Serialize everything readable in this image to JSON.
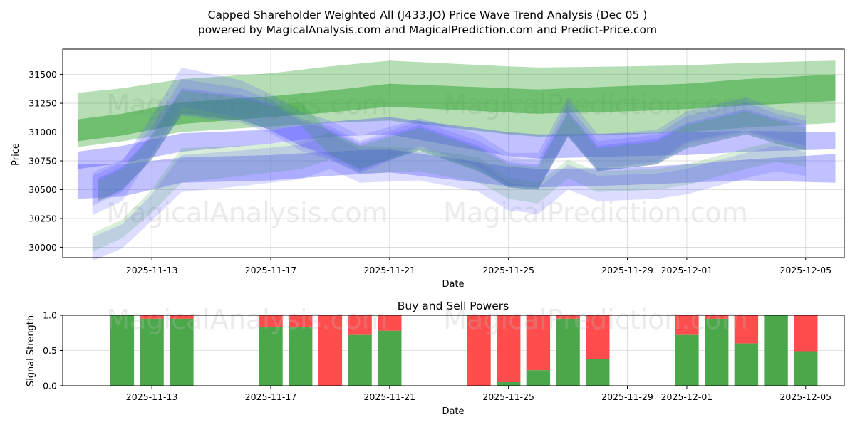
{
  "chart_data": [
    {
      "type": "area",
      "title_line1": "Capped Shareholder Weighted All (J433.JO) Price Wave Trend Analysis (Dec 05 )",
      "title_line2": "powered by MagicalAnalysis.com and MagicalPrediction.com and Predict-Price.com",
      "xlabel": "Date",
      "ylabel": "Price",
      "ylim": [
        29910,
        31720
      ],
      "xlim": [
        -2.0,
        24.3
      ],
      "x_ticks": [
        {
          "x": 1,
          "label": "2025-11-13"
        },
        {
          "x": 5,
          "label": "2025-11-17"
        },
        {
          "x": 9,
          "label": "2025-11-21"
        },
        {
          "x": 13,
          "label": "2025-11-25"
        },
        {
          "x": 17,
          "label": "2025-11-29"
        },
        {
          "x": 19,
          "label": "2025-12-01"
        },
        {
          "x": 23,
          "label": "2025-12-05"
        }
      ],
      "y_ticks": [
        30000,
        30250,
        30500,
        30750,
        31000,
        31250,
        31500
      ],
      "watermarks": [
        "MagicalAnalysis.com",
        "MagicalPrediction.com"
      ],
      "bands": [
        {
          "name": "green-outer",
          "color": "#2ca02c",
          "opacity": 0.35,
          "x": [
            -1.5,
            0.0,
            2.0,
            5.0,
            7.0,
            9.0,
            13.0,
            14.0,
            17.0,
            19.0,
            21.0,
            24.0
          ],
          "upper": [
            31340,
            31380,
            31460,
            31510,
            31570,
            31620,
            31570,
            31560,
            31570,
            31580,
            31600,
            31620
          ],
          "lower": [
            30870,
            30920,
            31000,
            31050,
            31080,
            31100,
            30980,
            30960,
            30980,
            31000,
            31040,
            31080
          ]
        },
        {
          "name": "green-inner",
          "color": "#2ca02c",
          "opacity": 0.5,
          "x": [
            -1.5,
            0.0,
            2.0,
            5.0,
            7.0,
            9.0,
            13.0,
            14.0,
            17.0,
            19.0,
            21.0,
            24.0
          ],
          "upper": [
            31110,
            31160,
            31260,
            31310,
            31360,
            31420,
            31380,
            31370,
            31400,
            31420,
            31460,
            31500
          ],
          "lower": [
            30920,
            30970,
            31070,
            31130,
            31170,
            31220,
            31170,
            31160,
            31180,
            31200,
            31230,
            31270
          ]
        },
        {
          "name": "blue-mid",
          "color": "#3333ff",
          "opacity": 0.3,
          "x": [
            -1.5,
            0.0,
            2.0,
            5.0,
            7.0,
            9.0,
            13.0,
            14.0,
            17.0,
            19.0,
            21.0,
            24.0
          ],
          "upper": [
            30830,
            30880,
            30990,
            31020,
            31090,
            31130,
            31000,
            30980,
            30990,
            31000,
            31010,
            31000
          ],
          "lower": [
            30680,
            30730,
            30830,
            30900,
            30960,
            30980,
            30790,
            30770,
            30790,
            30800,
            30830,
            30850
          ]
        },
        {
          "name": "blue-lower",
          "color": "#3333ff",
          "opacity": 0.3,
          "x": [
            -1.5,
            0.0,
            2.0,
            5.0,
            7.0,
            9.0,
            13.0,
            14.0,
            17.0,
            19.0,
            21.0,
            24.0
          ],
          "upper": [
            30720,
            30720,
            30780,
            30800,
            30830,
            30850,
            30700,
            30680,
            30690,
            30720,
            30760,
            30810
          ],
          "lower": [
            30420,
            30440,
            30560,
            30580,
            30620,
            30650,
            30530,
            30520,
            30540,
            30560,
            30580,
            30560
          ]
        },
        {
          "name": "green-wave-1",
          "color": "#2ca02c",
          "opacity": 0.18,
          "x": [
            -1.0,
            0.0,
            1.0,
            2.0,
            4.0,
            6.0,
            7.0,
            8.0,
            10.0,
            12.0,
            13.0,
            14.0,
            15.0,
            16.0,
            18.0,
            19.0,
            21.0,
            22.0,
            23.0
          ],
          "upper": [
            30120,
            30240,
            30500,
            30860,
            30880,
            30920,
            31000,
            30880,
            30860,
            30780,
            30600,
            30560,
            30760,
            30660,
            30680,
            30720,
            30860,
            30920,
            30860
          ],
          "lower": [
            29960,
            30080,
            30300,
            30560,
            30620,
            30680,
            30760,
            30640,
            30660,
            30560,
            30420,
            30380,
            30600,
            30480,
            30500,
            30540,
            30680,
            30740,
            30700
          ]
        },
        {
          "name": "blue-wave-1",
          "color": "#5555ff",
          "opacity": 0.2,
          "x": [
            -1.0,
            0.0,
            1.0,
            2.0,
            4.0,
            6.0,
            7.0,
            8.0,
            10.0,
            12.0,
            13.0,
            14.0,
            15.0,
            16.0,
            18.0,
            19.0,
            21.0,
            22.0,
            23.0
          ],
          "upper": [
            30090,
            30200,
            30460,
            30800,
            30840,
            30890,
            30980,
            30850,
            30830,
            30740,
            30560,
            30520,
            30720,
            30620,
            30640,
            30680,
            30820,
            30880,
            30830
          ],
          "lower": [
            29880,
            29990,
            30230,
            30480,
            30530,
            30590,
            30680,
            30560,
            30580,
            30480,
            30320,
            30290,
            30500,
            30400,
            30420,
            30460,
            30600,
            30660,
            30620
          ]
        },
        {
          "name": "blue-wave-2",
          "color": "#5555ff",
          "opacity": 0.2,
          "x": [
            -1.0,
            0.0,
            1.0,
            2.0,
            4.0,
            5.0,
            6.0,
            7.0,
            8.0,
            10.0,
            12.0,
            13.0,
            14.0,
            15.0,
            16.0,
            18.0,
            19.0,
            21.0,
            22.0,
            23.0
          ],
          "upper": [
            30650,
            30760,
            31040,
            31460,
            31380,
            31280,
            31120,
            31050,
            30920,
            31100,
            30920,
            30780,
            30760,
            31240,
            30920,
            30980,
            31140,
            31260,
            31160,
            31100
          ],
          "lower": [
            30360,
            30480,
            30780,
            31140,
            31080,
            30990,
            30840,
            30760,
            30640,
            30860,
            30680,
            30520,
            30500,
            30960,
            30660,
            30720,
            30900,
            31000,
            30920,
            30860
          ]
        },
        {
          "name": "blue-wave-3",
          "color": "#5555ff",
          "opacity": 0.2,
          "x": [
            -1.0,
            0.0,
            1.0,
            2.0,
            4.0,
            5.0,
            6.0,
            7.0,
            8.0,
            10.0,
            12.0,
            13.0,
            14.0,
            15.0,
            16.0,
            18.0,
            19.0,
            21.0,
            22.0,
            23.0
          ],
          "upper": [
            30620,
            30740,
            31140,
            31560,
            31450,
            31330,
            31180,
            31100,
            30970,
            31120,
            30980,
            30820,
            30820,
            31300,
            30980,
            31020,
            31180,
            31300,
            31200,
            31140
          ],
          "lower": [
            30280,
            30400,
            30800,
            31220,
            31120,
            31010,
            30880,
            30780,
            30660,
            30880,
            30700,
            30540,
            30520,
            30980,
            30680,
            30740,
            30920,
            31020,
            30940,
            30880
          ]
        },
        {
          "name": "blue-wave-4",
          "color": "#5555ff",
          "opacity": 0.25,
          "x": [
            -0.8,
            0.0,
            1.0,
            2.0,
            4.0,
            5.0,
            6.0,
            7.0,
            8.0,
            10.0,
            12.0,
            13.0,
            14.0,
            15.0,
            16.0,
            18.0,
            19.0,
            21.0,
            22.0,
            23.0
          ],
          "upper": [
            30600,
            30700,
            30980,
            31380,
            31320,
            31240,
            31100,
            31020,
            30900,
            31060,
            30880,
            30740,
            30720,
            31180,
            30880,
            30940,
            31080,
            31200,
            31120,
            31060
          ],
          "lower": [
            30400,
            30500,
            30760,
            31160,
            31100,
            31020,
            30880,
            30800,
            30680,
            30840,
            30660,
            30520,
            30500,
            30960,
            30660,
            30720,
            30860,
            30980,
            30900,
            30840
          ]
        },
        {
          "name": "green-wave-2",
          "color": "#2ca02c",
          "opacity": 0.22,
          "x": [
            -0.8,
            0.0,
            1.0,
            2.0,
            4.0,
            5.0,
            6.0,
            7.0,
            8.0,
            10.0,
            12.0,
            13.0,
            14.0,
            15.0,
            16.0,
            18.0,
            19.0,
            21.0,
            22.0,
            23.0
          ],
          "upper": [
            30580,
            30680,
            30960,
            31360,
            31300,
            31220,
            31260,
            31000,
            30880,
            31040,
            30860,
            30720,
            30700,
            31160,
            30860,
            30920,
            31060,
            31180,
            31100,
            31040
          ],
          "lower": [
            30400,
            30500,
            30760,
            31160,
            31100,
            31020,
            31060,
            30800,
            30680,
            30840,
            30660,
            30520,
            30500,
            30960,
            30660,
            30720,
            30860,
            30980,
            30900,
            30840
          ]
        }
      ]
    },
    {
      "type": "bar",
      "title": "Buy and Sell Powers",
      "xlabel": "Date",
      "ylabel": "Signal Strength",
      "ylim": [
        0.0,
        1.0
      ],
      "xlim": [
        -2.0,
        24.3
      ],
      "y_ticks": [
        {
          "v": 0.0,
          "label": "0.0"
        },
        {
          "v": 0.5,
          "label": "0.5"
        },
        {
          "v": 1.0,
          "label": "1.0"
        }
      ],
      "x_ticks": [
        {
          "x": 1,
          "label": "2025-11-13"
        },
        {
          "x": 5,
          "label": "2025-11-17"
        },
        {
          "x": 9,
          "label": "2025-11-21"
        },
        {
          "x": 13,
          "label": "2025-11-25"
        },
        {
          "x": 17,
          "label": "2025-11-29"
        },
        {
          "x": 19,
          "label": "2025-12-01"
        },
        {
          "x": 23,
          "label": "2025-12-05"
        }
      ],
      "watermarks": [
        "MagicalAnalysis.com",
        "MagicalPrediction.com"
      ],
      "buy_color": "#4aa84a",
      "sell_color": "#ff4d4d",
      "bars": [
        {
          "x": 0,
          "buy": 1.0
        },
        {
          "x": 1,
          "buy": 0.95
        },
        {
          "x": 2,
          "buy": 0.95
        },
        {
          "x": 5,
          "buy": 0.83
        },
        {
          "x": 6,
          "buy": 0.83
        },
        {
          "x": 7,
          "buy": 0.0
        },
        {
          "x": 8,
          "buy": 0.72
        },
        {
          "x": 9,
          "buy": 0.78
        },
        {
          "x": 12,
          "buy": 0.0
        },
        {
          "x": 13,
          "buy": 0.05
        },
        {
          "x": 14,
          "buy": 0.22
        },
        {
          "x": 15,
          "buy": 0.95
        },
        {
          "x": 16,
          "buy": 0.38
        },
        {
          "x": 19,
          "buy": 0.72
        },
        {
          "x": 20,
          "buy": 0.95
        },
        {
          "x": 21,
          "buy": 0.6
        },
        {
          "x": 22,
          "buy": 1.0
        },
        {
          "x": 23,
          "buy": 0.49
        }
      ]
    }
  ]
}
